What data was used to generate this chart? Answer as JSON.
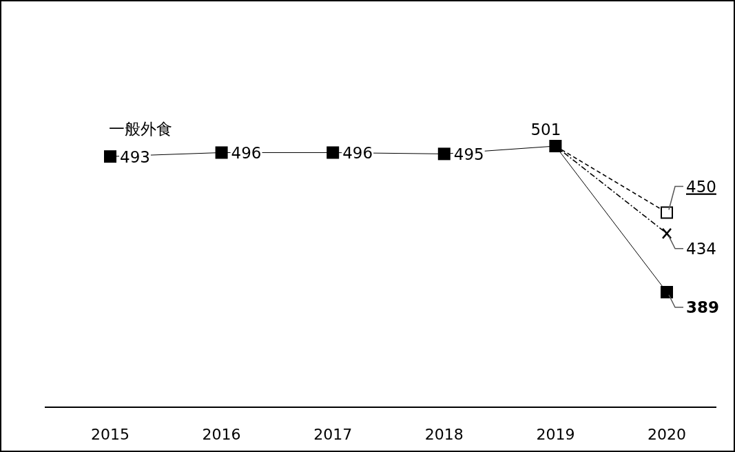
{
  "chart_data": {
    "type": "line",
    "categories": [
      "2015",
      "2016",
      "2017",
      "2018",
      "2019",
      "2020"
    ],
    "series": [
      {
        "name": "一般外食",
        "color": "#000000",
        "values": [
          493,
          496,
          496,
          495,
          501,
          389
        ],
        "marker": "square",
        "line_style": "solid",
        "value_labels": [
          "493",
          "496",
          "496",
          "495",
          "501",
          "389"
        ]
      },
      {
        "color": "#000000",
        "values": [
          null,
          null,
          null,
          null,
          501,
          450
        ],
        "marker": "square",
        "line_style": "dashed",
        "value_labels": [
          null,
          null,
          null,
          null,
          null,
          "450"
        ]
      },
      {
        "color": "#000000",
        "values": [
          null,
          null,
          null,
          null,
          501,
          434
        ],
        "marker": "cross",
        "line_style": "dashdot",
        "value_labels": [
          null,
          null,
          null,
          null,
          null,
          "434"
        ]
      }
    ]
  }
}
